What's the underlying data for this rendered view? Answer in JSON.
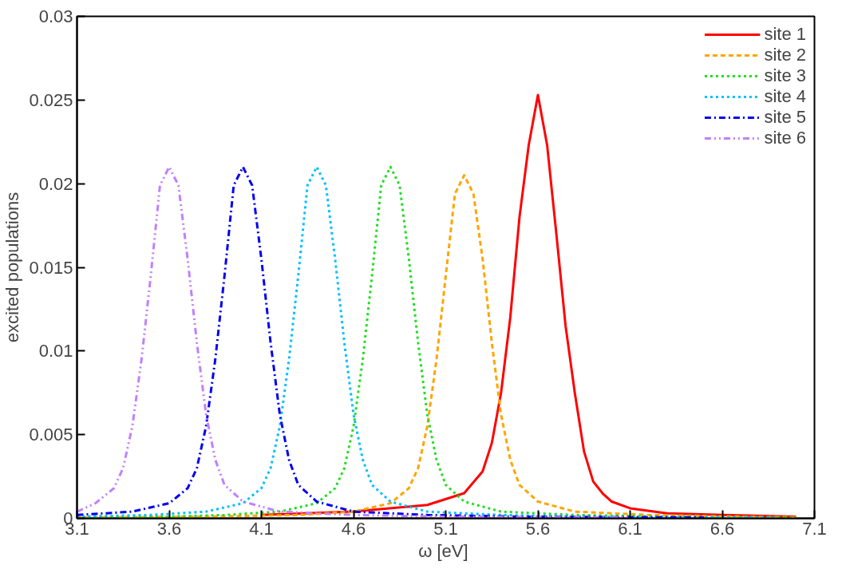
{
  "chart_data": {
    "type": "line",
    "xlabel": "ω  [eV]",
    "ylabel": "excited populations",
    "xlim": [
      3.1,
      7.1
    ],
    "xticks": [
      3.1,
      3.6,
      4.1,
      4.6,
      5.1,
      5.6,
      6.1,
      6.6,
      7.1
    ],
    "ylim": [
      0,
      0.03
    ],
    "yticks": [
      0,
      0.005,
      0.01,
      0.015,
      0.02,
      0.025,
      0.03
    ],
    "grid": false,
    "legend": "top right",
    "marker": "none",
    "series": [
      {
        "name": "site 1",
        "color": "#ff0000",
        "line_style": "solid",
        "x": [
          4.1,
          4.6,
          5.0,
          5.2,
          5.3,
          5.35,
          5.4,
          5.45,
          5.5,
          5.55,
          5.6,
          5.65,
          5.7,
          5.75,
          5.8,
          5.85,
          5.9,
          5.95,
          6.0,
          6.1,
          6.3,
          6.6,
          7.0
        ],
        "values": [
          0.0002,
          0.0004,
          0.0008,
          0.0015,
          0.0028,
          0.0045,
          0.0075,
          0.012,
          0.018,
          0.0223,
          0.0253,
          0.0223,
          0.017,
          0.0115,
          0.0075,
          0.004,
          0.0022,
          0.0015,
          0.001,
          0.0006,
          0.0003,
          0.0002,
          0.0001
        ]
      },
      {
        "name": "site 2",
        "color": "#ffa500",
        "line_style": "dashed",
        "x": [
          3.1,
          3.8,
          4.3,
          4.6,
          4.8,
          4.9,
          4.95,
          5.0,
          5.05,
          5.1,
          5.15,
          5.2,
          5.25,
          5.3,
          5.35,
          5.4,
          5.45,
          5.5,
          5.6,
          5.8,
          6.2,
          6.7,
          7.0
        ],
        "values": [
          5e-05,
          0.0001,
          0.0002,
          0.0004,
          0.0009,
          0.0018,
          0.003,
          0.0055,
          0.0095,
          0.0145,
          0.0194,
          0.0205,
          0.0194,
          0.0155,
          0.0105,
          0.0062,
          0.0035,
          0.002,
          0.001,
          0.0004,
          0.0002,
          0.0001,
          5e-05
        ]
      },
      {
        "name": "site 3",
        "color": "#22dd22",
        "line_style": "dotted",
        "x": [
          3.1,
          3.6,
          3.9,
          4.2,
          4.4,
          4.5,
          4.55,
          4.6,
          4.65,
          4.7,
          4.75,
          4.8,
          4.85,
          4.9,
          4.95,
          5.0,
          5.05,
          5.1,
          5.2,
          5.4,
          5.8,
          6.3,
          7.0
        ],
        "values": [
          5e-05,
          0.0001,
          0.0002,
          0.0004,
          0.0009,
          0.0018,
          0.003,
          0.0055,
          0.0095,
          0.0145,
          0.0199,
          0.021,
          0.0199,
          0.0155,
          0.0105,
          0.0062,
          0.0035,
          0.002,
          0.001,
          0.0004,
          0.0002,
          0.0001,
          5e-05
        ]
      },
      {
        "name": "site 4",
        "color": "#00bfff",
        "line_style": "dotted",
        "x": [
          3.1,
          3.5,
          3.8,
          4.0,
          4.1,
          4.15,
          4.2,
          4.25,
          4.3,
          4.35,
          4.4,
          4.45,
          4.5,
          4.55,
          4.6,
          4.65,
          4.7,
          4.8,
          5.0,
          5.4,
          5.9,
          6.9
        ],
        "values": [
          0.0001,
          0.0002,
          0.0004,
          0.0009,
          0.0018,
          0.003,
          0.0055,
          0.0095,
          0.0145,
          0.0199,
          0.021,
          0.0199,
          0.0155,
          0.0105,
          0.0062,
          0.0035,
          0.002,
          0.001,
          0.0004,
          0.0002,
          0.0001,
          5e-05
        ]
      },
      {
        "name": "site 5",
        "color": "#0000ee",
        "line_style": "dashdot",
        "x": [
          3.1,
          3.4,
          3.6,
          3.7,
          3.75,
          3.8,
          3.85,
          3.9,
          3.95,
          4.0,
          4.05,
          4.1,
          4.15,
          4.2,
          4.25,
          4.3,
          4.4,
          4.6,
          5.0,
          5.5,
          6.5
        ],
        "values": [
          0.0002,
          0.0004,
          0.0009,
          0.0018,
          0.003,
          0.0055,
          0.0095,
          0.0145,
          0.0199,
          0.021,
          0.0199,
          0.0155,
          0.0105,
          0.0062,
          0.0035,
          0.002,
          0.001,
          0.0004,
          0.0002,
          0.0001,
          5e-05
        ]
      },
      {
        "name": "site 6",
        "color": "#c080ff",
        "line_style": "dashdotdot",
        "x": [
          3.1,
          3.2,
          3.3,
          3.35,
          3.4,
          3.45,
          3.5,
          3.55,
          3.6,
          3.65,
          3.7,
          3.75,
          3.8,
          3.85,
          3.9,
          4.0,
          4.2,
          4.6,
          5.1,
          6.1
        ],
        "values": [
          0.0004,
          0.0009,
          0.0018,
          0.003,
          0.0055,
          0.0095,
          0.0145,
          0.0199,
          0.021,
          0.0199,
          0.0155,
          0.0105,
          0.0062,
          0.0035,
          0.002,
          0.001,
          0.0004,
          0.0002,
          0.0001,
          5e-05
        ]
      }
    ]
  }
}
